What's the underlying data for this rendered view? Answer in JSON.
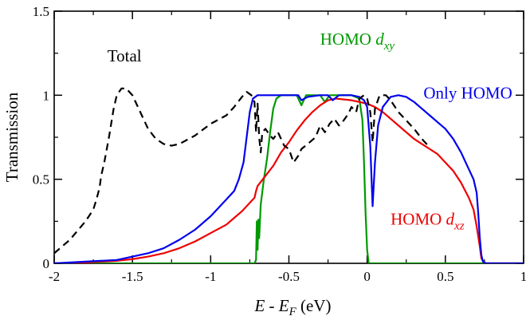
{
  "chart_data": {
    "type": "line",
    "title": "",
    "xlabel": {
      "main": "E - E",
      "sub": "F",
      "unit": " (eV)"
    },
    "ylabel": "Transmission",
    "xlim": [
      -2,
      1
    ],
    "ylim": [
      0,
      1.5
    ],
    "grid": false,
    "x_ticks": [
      -2,
      -1.5,
      -1,
      -0.5,
      0,
      0.5,
      1
    ],
    "x_tick_labels": [
      "-2",
      "-1.5",
      "-1",
      "-0.5",
      "0",
      "0.5",
      "1"
    ],
    "y_ticks": [
      0,
      0.5,
      1,
      1.5
    ],
    "y_tick_labels": [
      "0",
      "0.5",
      "1",
      "1.5"
    ],
    "series": [
      {
        "name": "Total",
        "color": "#000000",
        "dash": "dashed",
        "label_parts": [
          "Total",
          ""
        ],
        "points": [
          [
            -2.0,
            0.06
          ],
          [
            -1.9,
            0.14
          ],
          [
            -1.8,
            0.25
          ],
          [
            -1.75,
            0.32
          ],
          [
            -1.73,
            0.38
          ],
          [
            -1.71,
            0.45
          ],
          [
            -1.7,
            0.52
          ],
          [
            -1.68,
            0.6
          ],
          [
            -1.65,
            0.75
          ],
          [
            -1.62,
            0.92
          ],
          [
            -1.6,
            1.0
          ],
          [
            -1.57,
            1.04
          ],
          [
            -1.54,
            1.04
          ],
          [
            -1.5,
            1.0
          ],
          [
            -1.45,
            0.9
          ],
          [
            -1.4,
            0.8
          ],
          [
            -1.35,
            0.74
          ],
          [
            -1.3,
            0.71
          ],
          [
            -1.25,
            0.7
          ],
          [
            -1.2,
            0.71
          ],
          [
            -1.1,
            0.76
          ],
          [
            -1.0,
            0.83
          ],
          [
            -0.9,
            0.88
          ],
          [
            -0.85,
            0.93
          ],
          [
            -0.8,
            0.99
          ],
          [
            -0.77,
            1.02
          ],
          [
            -0.74,
            1.0
          ],
          [
            -0.72,
            0.96
          ],
          [
            -0.71,
            0.78
          ],
          [
            -0.7,
            0.95
          ],
          [
            -0.69,
            0.75
          ],
          [
            -0.68,
            0.66
          ],
          [
            -0.67,
            0.78
          ],
          [
            -0.65,
            0.8
          ],
          [
            -0.62,
            0.76
          ],
          [
            -0.6,
            0.74
          ],
          [
            -0.57,
            0.78
          ],
          [
            -0.53,
            0.7
          ],
          [
            -0.5,
            0.68
          ],
          [
            -0.47,
            0.6
          ],
          [
            -0.44,
            0.64
          ],
          [
            -0.42,
            0.68
          ],
          [
            -0.38,
            0.71
          ],
          [
            -0.33,
            0.75
          ],
          [
            -0.3,
            0.82
          ],
          [
            -0.27,
            0.78
          ],
          [
            -0.24,
            0.83
          ],
          [
            -0.21,
            0.86
          ],
          [
            -0.18,
            0.82
          ],
          [
            -0.15,
            0.85
          ],
          [
            -0.12,
            0.89
          ],
          [
            -0.1,
            0.93
          ],
          [
            -0.07,
            0.9
          ],
          [
            -0.05,
            0.98
          ],
          [
            -0.02,
            1.0
          ],
          [
            0.0,
            0.98
          ],
          [
            0.02,
            0.9
          ],
          [
            0.035,
            0.72
          ],
          [
            0.05,
            0.92
          ],
          [
            0.08,
            1.0
          ],
          [
            0.12,
            1.0
          ],
          [
            0.15,
            0.97
          ],
          [
            0.2,
            0.9
          ],
          [
            0.25,
            0.85
          ],
          [
            0.3,
            0.8
          ],
          [
            0.35,
            0.74
          ],
          [
            0.37,
            0.72
          ],
          [
            0.4,
            0.69
          ]
        ]
      },
      {
        "name": "Only HOMO",
        "color": "#0000ee",
        "dash": "solid",
        "label_parts": [
          "Only HOMO",
          ""
        ],
        "points": [
          [
            -2.0,
            0.0
          ],
          [
            -1.8,
            0.01
          ],
          [
            -1.6,
            0.02
          ],
          [
            -1.5,
            0.04
          ],
          [
            -1.4,
            0.06
          ],
          [
            -1.3,
            0.09
          ],
          [
            -1.2,
            0.14
          ],
          [
            -1.1,
            0.2
          ],
          [
            -1.0,
            0.28
          ],
          [
            -0.95,
            0.33
          ],
          [
            -0.9,
            0.38
          ],
          [
            -0.85,
            0.43
          ],
          [
            -0.82,
            0.5
          ],
          [
            -0.79,
            0.6
          ],
          [
            -0.77,
            0.75
          ],
          [
            -0.75,
            0.9
          ],
          [
            -0.73,
            0.98
          ],
          [
            -0.7,
            1.0
          ],
          [
            -0.5,
            1.0
          ],
          [
            -0.44,
            1.0
          ],
          [
            -0.42,
            0.97
          ],
          [
            -0.38,
            0.99
          ],
          [
            -0.3,
            1.0
          ],
          [
            -0.25,
            1.0
          ],
          [
            -0.22,
            0.97
          ],
          [
            -0.18,
            1.0
          ],
          [
            -0.1,
            1.0
          ],
          [
            -0.05,
            0.99
          ],
          [
            -0.02,
            0.97
          ],
          [
            0.0,
            0.93
          ],
          [
            0.02,
            0.7
          ],
          [
            0.035,
            0.34
          ],
          [
            0.05,
            0.6
          ],
          [
            0.07,
            0.82
          ],
          [
            0.1,
            0.93
          ],
          [
            0.15,
            0.99
          ],
          [
            0.2,
            1.0
          ],
          [
            0.25,
            0.99
          ],
          [
            0.3,
            0.96
          ],
          [
            0.35,
            0.92
          ],
          [
            0.4,
            0.88
          ],
          [
            0.45,
            0.84
          ],
          [
            0.5,
            0.8
          ],
          [
            0.55,
            0.74
          ],
          [
            0.6,
            0.66
          ],
          [
            0.65,
            0.56
          ],
          [
            0.68,
            0.5
          ],
          [
            0.7,
            0.42
          ],
          [
            0.71,
            0.3
          ],
          [
            0.72,
            0.15
          ],
          [
            0.73,
            0.05
          ],
          [
            0.74,
            0.01
          ],
          [
            0.76,
            0.0
          ],
          [
            1.0,
            0.0
          ]
        ]
      },
      {
        "name": "HOMO d",
        "color": "#ee0000",
        "dash": "solid",
        "label_parts": [
          "HOMO d",
          "xz"
        ],
        "points": [
          [
            -2.0,
            0.0
          ],
          [
            -1.8,
            0.005
          ],
          [
            -1.6,
            0.015
          ],
          [
            -1.5,
            0.025
          ],
          [
            -1.4,
            0.04
          ],
          [
            -1.3,
            0.06
          ],
          [
            -1.2,
            0.09
          ],
          [
            -1.1,
            0.13
          ],
          [
            -1.0,
            0.18
          ],
          [
            -0.9,
            0.23
          ],
          [
            -0.85,
            0.27
          ],
          [
            -0.8,
            0.31
          ],
          [
            -0.75,
            0.36
          ],
          [
            -0.72,
            0.39
          ],
          [
            -0.71,
            0.43
          ],
          [
            -0.7,
            0.46
          ],
          [
            -0.65,
            0.52
          ],
          [
            -0.6,
            0.58
          ],
          [
            -0.55,
            0.66
          ],
          [
            -0.5,
            0.72
          ],
          [
            -0.45,
            0.79
          ],
          [
            -0.4,
            0.85
          ],
          [
            -0.35,
            0.9
          ],
          [
            -0.3,
            0.94
          ],
          [
            -0.25,
            0.97
          ],
          [
            -0.2,
            0.98
          ],
          [
            -0.1,
            0.97
          ],
          [
            -0.05,
            0.96
          ],
          [
            0.0,
            0.95
          ],
          [
            0.05,
            0.93
          ],
          [
            0.1,
            0.9
          ],
          [
            0.15,
            0.86
          ],
          [
            0.2,
            0.82
          ],
          [
            0.25,
            0.78
          ],
          [
            0.3,
            0.74
          ],
          [
            0.35,
            0.71
          ],
          [
            0.4,
            0.68
          ],
          [
            0.45,
            0.65
          ],
          [
            0.5,
            0.6
          ],
          [
            0.55,
            0.55
          ],
          [
            0.6,
            0.48
          ],
          [
            0.65,
            0.39
          ],
          [
            0.68,
            0.32
          ],
          [
            0.7,
            0.22
          ],
          [
            0.72,
            0.1
          ],
          [
            0.73,
            0.03
          ],
          [
            0.75,
            0.0
          ],
          [
            1.0,
            0.0
          ]
        ]
      },
      {
        "name": "HOMO d",
        "color": "#009900",
        "dash": "solid",
        "label_parts": [
          "HOMO d",
          "xy"
        ],
        "points": [
          [
            -2.0,
            0.0
          ],
          [
            -0.72,
            0.0
          ],
          [
            -0.71,
            0.02
          ],
          [
            -0.705,
            0.25
          ],
          [
            -0.7,
            0.08
          ],
          [
            -0.695,
            0.26
          ],
          [
            -0.69,
            0.15
          ],
          [
            -0.68,
            0.35
          ],
          [
            -0.66,
            0.5
          ],
          [
            -0.64,
            0.62
          ],
          [
            -0.62,
            0.78
          ],
          [
            -0.6,
            0.92
          ],
          [
            -0.58,
            0.98
          ],
          [
            -0.55,
            1.0
          ],
          [
            -0.45,
            1.0
          ],
          [
            -0.42,
            0.94
          ],
          [
            -0.39,
            1.0
          ],
          [
            -0.3,
            1.0
          ],
          [
            -0.27,
            0.96
          ],
          [
            -0.24,
            1.0
          ],
          [
            -0.1,
            1.0
          ],
          [
            -0.05,
            0.98
          ],
          [
            -0.03,
            0.85
          ],
          [
            -0.02,
            0.6
          ],
          [
            -0.01,
            0.3
          ],
          [
            0.0,
            0.08
          ],
          [
            0.01,
            0.0
          ],
          [
            1.0,
            0.0
          ]
        ]
      }
    ],
    "annotations": [
      {
        "name": "label-total",
        "series_index": 0,
        "x": -1.66,
        "y": 1.2
      },
      {
        "name": "label-only-homo",
        "series_index": 1,
        "x": 0.36,
        "y": 0.98
      },
      {
        "name": "label-homo-dxz",
        "series_index": 2,
        "x": 0.15,
        "y": 0.23
      },
      {
        "name": "label-homo-dxy",
        "series_index": 3,
        "x": -0.3,
        "y": 1.3
      }
    ]
  }
}
